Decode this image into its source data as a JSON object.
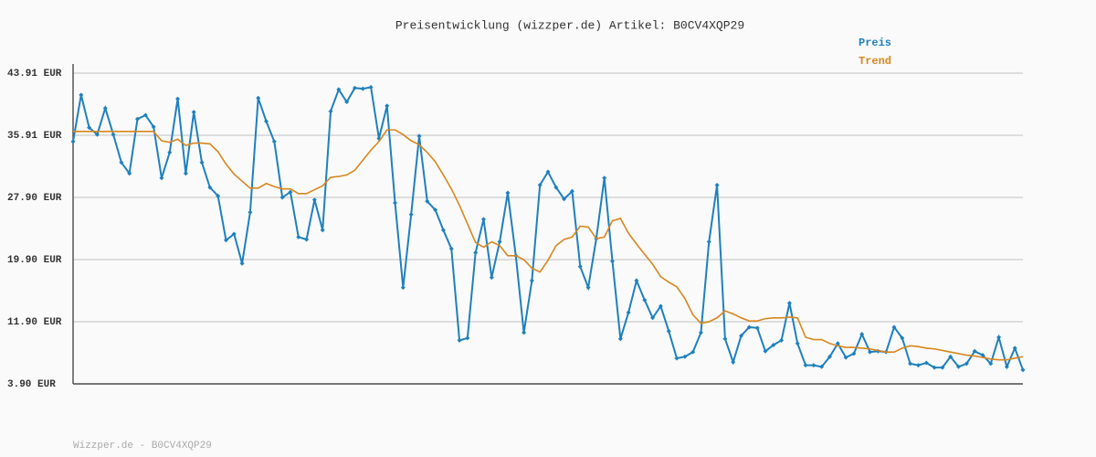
{
  "chart_data": {
    "type": "line",
    "title": "Preisentwicklung (wizzper.de) Artikel: B0CV4XQP29",
    "footer": "Wizzper.de - B0CV4XQP29",
    "ylim": [
      3.9,
      43.91
    ],
    "yticks": [
      {
        "value": 3.9,
        "label": "3.90 EUR"
      },
      {
        "value": 11.9,
        "label": "11.90 EUR"
      },
      {
        "value": 19.9,
        "label": "19.90 EUR"
      },
      {
        "value": 27.9,
        "label": "27.90 EUR"
      },
      {
        "value": 35.91,
        "label": "35.91 EUR"
      },
      {
        "value": 43.91,
        "label": "43.91 EUR"
      }
    ],
    "grid": true,
    "legend": "top-right",
    "series": [
      {
        "name": "Preis",
        "color": "#1f80bd",
        "markers": true,
        "values": [
          35.1,
          41.1,
          36.9,
          36.0,
          39.4,
          36.0,
          32.4,
          31.0,
          38.0,
          38.5,
          37.0,
          30.4,
          33.7,
          40.6,
          31.0,
          38.9,
          32.4,
          29.2,
          28.1,
          22.4,
          23.2,
          19.4,
          26.0,
          40.7,
          37.7,
          35.1,
          27.9,
          28.6,
          22.8,
          22.5,
          27.6,
          23.7,
          39.0,
          41.8,
          40.2,
          42.0,
          41.9,
          42.1,
          35.5,
          39.7,
          27.2,
          16.3,
          25.7,
          35.8,
          27.4,
          26.3,
          23.7,
          21.3,
          9.5,
          9.8,
          20.8,
          25.1,
          17.6,
          22.2,
          28.5,
          20.4,
          10.5,
          17.2,
          29.5,
          31.2,
          29.2,
          27.7,
          28.7,
          19.0,
          16.3,
          22.6,
          30.4,
          19.7,
          9.7,
          13.1,
          17.2,
          14.7,
          12.4,
          13.9,
          10.7,
          7.2,
          7.4,
          8.0,
          10.5,
          22.2,
          29.5,
          9.7,
          6.7,
          10.1,
          11.2,
          11.1,
          8.1,
          8.9,
          9.5,
          14.3,
          9.1,
          6.3,
          6.3,
          6.1,
          7.4,
          9.1,
          7.3,
          7.8,
          10.3,
          8.0,
          8.1,
          8.0,
          11.2,
          9.8,
          6.5,
          6.3,
          6.6,
          6.0,
          6.0,
          7.4,
          6.1,
          6.5,
          8.1,
          7.6,
          6.5,
          9.9,
          6.1,
          8.5,
          5.7
        ]
      },
      {
        "name": "Trend",
        "color": "#d8861e",
        "markers": false,
        "values": [
          36.4,
          36.4,
          36.4,
          36.4,
          36.4,
          36.4,
          36.4,
          36.4,
          36.4,
          36.4,
          36.4,
          35.2,
          35.0,
          35.4,
          34.6,
          34.9,
          34.9,
          34.8,
          33.8,
          32.2,
          30.9,
          30.0,
          29.1,
          29.1,
          29.7,
          29.3,
          29.0,
          29.0,
          28.4,
          28.4,
          28.9,
          29.4,
          30.5,
          30.6,
          30.8,
          31.4,
          32.7,
          34.0,
          35.1,
          36.6,
          36.6,
          36.0,
          35.2,
          34.7,
          33.7,
          32.5,
          30.8,
          29.0,
          26.9,
          24.5,
          22.1,
          21.5,
          22.2,
          21.7,
          20.4,
          20.4,
          19.9,
          18.8,
          18.3,
          19.8,
          21.7,
          22.5,
          22.8,
          24.2,
          24.1,
          22.6,
          22.8,
          24.9,
          25.2,
          23.3,
          21.9,
          20.6,
          19.3,
          17.7,
          17.0,
          16.4,
          14.9,
          12.8,
          11.7,
          11.9,
          12.4,
          13.3,
          12.9,
          12.4,
          12.0,
          12.0,
          12.3,
          12.4,
          12.4,
          12.5,
          12.4,
          9.9,
          9.6,
          9.6,
          9.1,
          8.8,
          8.6,
          8.6,
          8.5,
          8.4,
          8.2,
          8.0,
          8.0,
          8.5,
          8.8,
          8.7,
          8.5,
          8.4,
          8.2,
          8.0,
          7.8,
          7.6,
          7.5,
          7.3,
          7.1,
          7.0,
          7.0,
          7.2,
          7.4
        ]
      }
    ]
  }
}
